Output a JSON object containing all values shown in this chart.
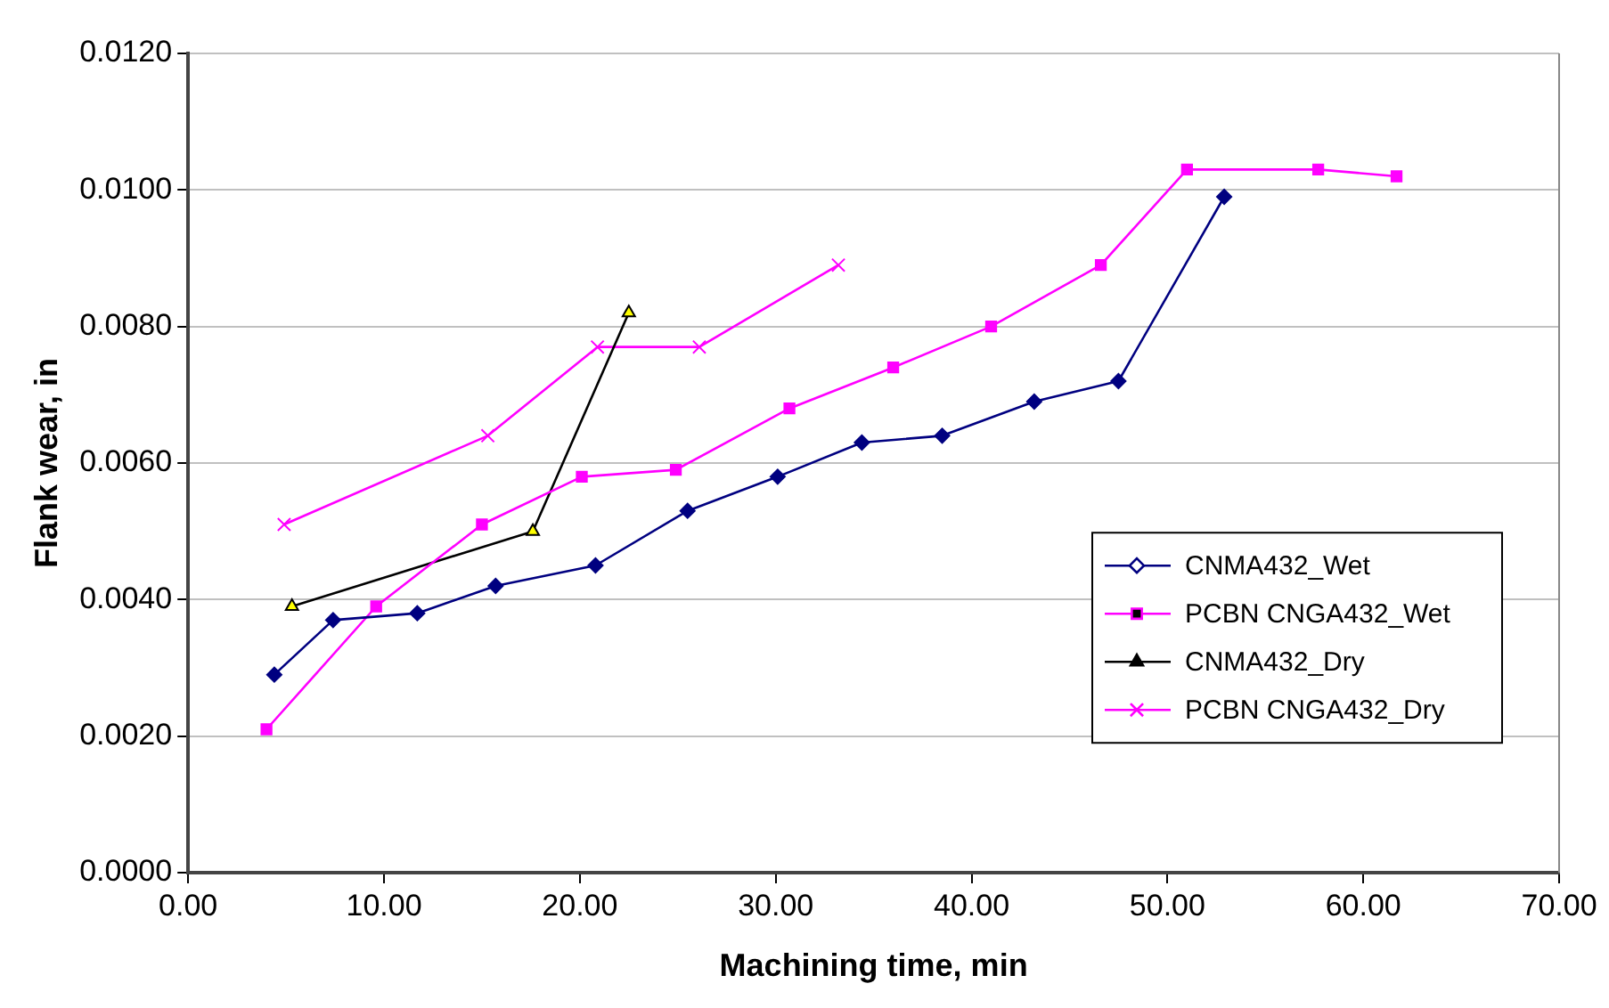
{
  "chart_data": {
    "type": "line",
    "xlabel": "Machining time, min",
    "ylabel": "Flank wear, in",
    "xlim": [
      0,
      70
    ],
    "xticks": [
      {
        "value": 0,
        "label": "0.00"
      },
      {
        "value": 10,
        "label": "10.00"
      },
      {
        "value": 20,
        "label": "20.00"
      },
      {
        "value": 30,
        "label": "30.00"
      },
      {
        "value": 40,
        "label": "40.00"
      },
      {
        "value": 50,
        "label": "50.00"
      },
      {
        "value": 60,
        "label": "60.00"
      },
      {
        "value": 70,
        "label": "70.00"
      }
    ],
    "ylim": [
      0,
      0.012
    ],
    "yticks": [
      {
        "value": 0,
        "label": "0.0000"
      },
      {
        "value": 0.002,
        "label": "0.0020"
      },
      {
        "value": 0.004,
        "label": "0.0040"
      },
      {
        "value": 0.006,
        "label": "0.0060"
      },
      {
        "value": 0.008,
        "label": "0.0080"
      },
      {
        "value": 0.01,
        "label": "0.0100"
      },
      {
        "value": 0.012,
        "label": "0.0120"
      }
    ],
    "grid": "y",
    "legend": "right",
    "line_style": "solid",
    "series": [
      {
        "name": "CNMA432_Wet",
        "color": "#000080",
        "marker": "diamond",
        "x": [
          4.4,
          7.4,
          11.7,
          15.7,
          20.8,
          25.5,
          30.1,
          34.4,
          38.5,
          43.2,
          47.5,
          52.9
        ],
        "values": [
          0.0029,
          0.0037,
          0.0038,
          0.0042,
          0.0045,
          0.0053,
          0.0058,
          0.0063,
          0.0064,
          0.0069,
          0.0072,
          0.0099
        ]
      },
      {
        "name": "PCBN CNGA432_Wet",
        "color": "#ff00ff",
        "marker": "square",
        "x": [
          4.0,
          9.6,
          15.0,
          20.1,
          24.9,
          30.7,
          36.0,
          41.0,
          46.6,
          51.0,
          57.7,
          61.7
        ],
        "values": [
          0.0021,
          0.0039,
          0.0051,
          0.0058,
          0.0059,
          0.0068,
          0.0074,
          0.008,
          0.0089,
          0.0103,
          0.0103,
          0.0102
        ]
      },
      {
        "name": "CNMA432_Dry",
        "color": "#000000",
        "marker": "triangle",
        "x": [
          5.3,
          17.6,
          22.5
        ],
        "values": [
          0.0039,
          0.005,
          0.0082
        ]
      },
      {
        "name": "PCBN CNGA432_Dry",
        "color": "#ff00ff",
        "marker": "cross",
        "x": [
          4.9,
          15.3,
          20.9,
          26.1,
          33.2
        ],
        "values": [
          0.0051,
          0.0064,
          0.0077,
          0.0077,
          0.0089
        ]
      }
    ]
  }
}
